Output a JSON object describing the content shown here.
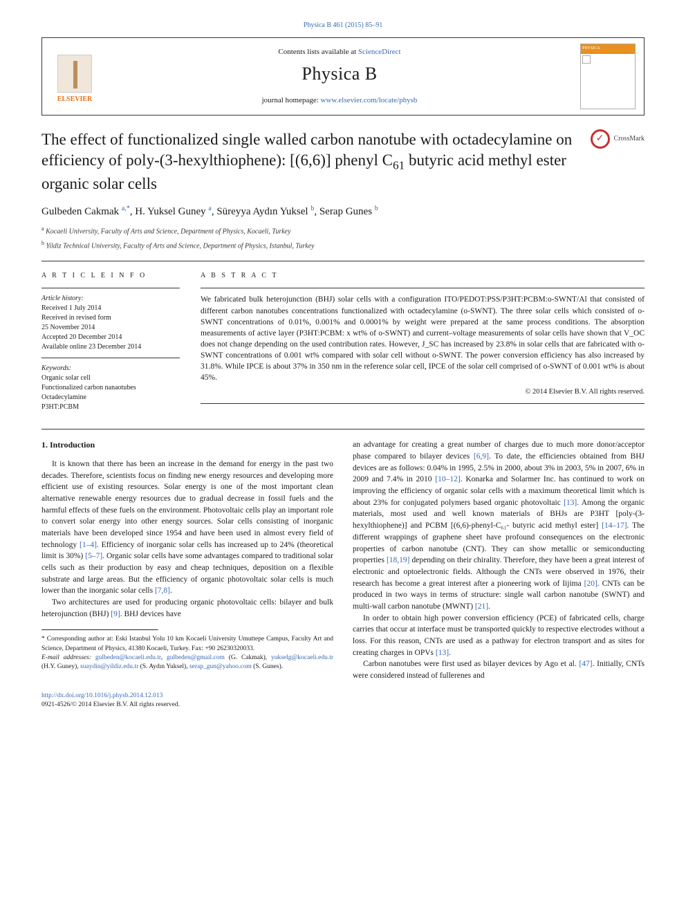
{
  "top_link": {
    "citation": "Physica B 461 (2015) 85–91",
    "href_label": "Physica B 461 (2015) 85–91"
  },
  "header": {
    "contents_prefix": "Contents lists available at ",
    "contents_link": "ScienceDirect",
    "journal": "Physica B",
    "homepage_prefix": "journal homepage: ",
    "homepage_url": "www.elsevier.com/locate/physb",
    "publisher_logo": "ELSEVIER",
    "cover_label": "PHYSICA"
  },
  "crossmark": "CrossMark",
  "title_parts": {
    "p1": "The effect of functionalized single walled carbon nanotube with octadecylamine on efficiency of poly-(3-hexylthiophene): [(6,6)] phenyl C",
    "sub1": "61",
    "p2": " butyric acid methyl ester organic solar cells"
  },
  "authors": [
    {
      "name": "Gulbeden Cakmak",
      "marks": "a,*"
    },
    {
      "name": "H. Yuksel Guney",
      "marks": "a"
    },
    {
      "name": "Süreyya Aydın Yuksel",
      "marks": "b"
    },
    {
      "name": "Serap Gunes",
      "marks": "b"
    }
  ],
  "affiliations": [
    {
      "mark": "a",
      "text": "Kocaeli University, Faculty of Arts and Science, Department of Physics, Kocaeli, Turkey"
    },
    {
      "mark": "b",
      "text": "Yildiz Technical University, Faculty of Arts and Science, Department of Physics, Istanbul, Turkey"
    }
  ],
  "article_info": {
    "heading": "A R T I C L E  I N F O",
    "history_label": "Article history:",
    "history": [
      "Received 1 July 2014",
      "Received in revised form",
      "25 November 2014",
      "Accepted 20 December 2014",
      "Available online 23 December 2014"
    ],
    "keywords_label": "Keywords:",
    "keywords": [
      "Organic solar cell",
      "Functionalized carbon nanaotubes",
      "Octadecylamine",
      "P3HT:PCBM"
    ]
  },
  "abstract": {
    "heading": "A B S T R A C T",
    "text": "We fabricated bulk heterojunction (BHJ) solar cells with a configuration ITO/PEDOT:PSS/P3HT:PCBM:o-SWNT/Al that consisted of different carbon nanotubes concentrations functionalized with octadecylamine (o-SWNT). The three solar cells which consisted of o-SWNT concentrations of 0.01%, 0.001% and 0.0001% by weight were prepared at the same process conditions. The absorption measurements of active layer (P3HT:PCBM: x wt% of o-SWNT) and current–voltage measurements of solar cells have shown that V_OC does not change depending on the used contribution rates. However, J_SC has increased by 23.8% in solar cells that are fabricated with o-SWNT concentrations of 0.001 wt% compared with solar cell without o-SWNT. The power conversion efficiency has also increased by 31.8%. While IPCE is about 37% in 350 nm in the reference solar cell, IPCE of the solar cell comprised of o-SWNT of 0.001 wt% is about 45%.",
    "copyright": "© 2014 Elsevier B.V. All rights reserved."
  },
  "section1": {
    "heading": "1.  Introduction",
    "para1a": "It is known that there has been an increase in the demand for energy in the past two decades. Therefore, scientists focus on finding new energy resources and developing more efficient use of existing resources. Solar energy is one of the most important clean alternative renewable energy resources due to gradual decrease in fossil fuels and the harmful effects of these fuels on the environment. Photovoltaic cells play an important role to convert solar energy into other energy sources. Solar cells consisting of inorganic materials have been developed since 1954 and have been used in almost every field of technology ",
    "ref1": "[1–4]",
    "para1b": ". Efficiency of inorganic solar cells has increased up to 24% (theoretical limit is 30%) ",
    "ref2": "[5–7]",
    "para1c": ". Organic solar cells have some advantages compared to traditional solar cells such as their production by easy and cheap techniques, deposition on a flexible substrate and large areas. But the efficiency of organic photovoltaic solar cells is much lower than the inorganic solar cells ",
    "ref3": "[7,8]",
    "para1d": ".",
    "para2a": "Two architectures are used for producing organic photovoltaic cells: bilayer and bulk heterojunction (BHJ) ",
    "ref4": "[9]",
    "para2b": ". BHJ devices have",
    "para3a": "an advantage for creating a great number of charges due to much more donor/acceptor phase compared to bilayer devices ",
    "ref5": "[6,9]",
    "para3b": ". To date, the efficiencies obtained from BHJ devices are as follows: 0.04% in 1995, 2.5% in 2000, about 3% in 2003, 5% in 2007, 6% in 2009 and 7.4% in 2010 ",
    "ref6": "[10–12]",
    "para3c": ". Konarka and Solarmer Inc. has continued to work on improving the efficiency of organic solar cells with a maximum theoretical limit which is about 23% for conjugated polymers based organic photovoltaic ",
    "ref7": "[13]",
    "para3d": ". Among the organic materials, most used and well known materials of BHJs are P3HT [poly-(3-hexylthiophene)] and PCBM [(6,6)-phenyl-C₆₁- butyric acid methyl ester] ",
    "ref8": "[14–17]",
    "para3e": ". The different wrappings of graphene sheet have profound consequences on the electronic properties of carbon nanotube (CNT). They can show metallic or semiconducting properties ",
    "ref9": "[18,19]",
    "para3f": " depending on their chirality. Therefore, they have been a great interest of electronic and optoelectronic fields. Although the CNTs were observed in 1976, their research has become a great interest after a pioneering work of Iijima ",
    "ref10": "[20]",
    "para3g": ". CNTs can be produced in two ways in terms of structure: single wall carbon nanotube (SWNT) and multi-wall carbon nanotube (MWNT) ",
    "ref11": "[21]",
    "para3h": ".",
    "para4a": "In order to obtain high power conversion efficiency (PCE) of fabricated cells, charge carries that occur at interface must be transported quickly to respective electrodes without a loss. For this reason, CNTs are used as a pathway for electron transport and as sites for creating charges in OPVs ",
    "ref12": "[13]",
    "para4b": ".",
    "para5a": "Carbon nanotubes were first used as bilayer devices by Ago et al. ",
    "ref13": "[47]",
    "para5b": ". Initially, CNTs were considered instead of fullerenes and"
  },
  "footnotes": {
    "corr_label": "* Corresponding author at: Eski Istanbul Yolu 10 km Kocaeli University Umuttepe Campus, Faculty Art and Science, Department of Physics, 41380 Kocaeli, Turkey. Fax: +90 26230320033.",
    "email_label": "E-mail addresses: ",
    "emails": [
      {
        "addr": "gulbeden@kocaeli.edu.tr",
        "sep": ", "
      },
      {
        "addr": "gulbeden@gmail.com",
        "sep": " (G. Cakmak), "
      },
      {
        "addr": "yukselg@kocaeli.edu.tr",
        "sep": " (H.Y. Guney), "
      },
      {
        "addr": "suaydin@yildiz.edu.tr",
        "sep": " (S. Aydın Yuksel), "
      },
      {
        "addr": "serap_gun@yahoo.com",
        "sep": " (S. Gunes)."
      }
    ]
  },
  "footer": {
    "doi": "http://dx.doi.org/10.1016/j.physb.2014.12.013",
    "issn": "0921-4526/© 2014 Elsevier B.V. All rights reserved."
  },
  "colors": {
    "link": "#3968b1",
    "accent": "#e8711c",
    "text": "#1a1a1a",
    "rule": "#333333"
  }
}
